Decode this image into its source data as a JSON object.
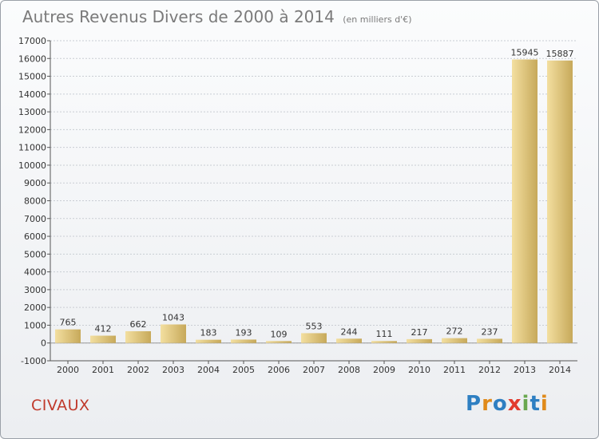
{
  "title": "Autres Revenus Divers de 2000 à 2014",
  "unit_note": "(en milliers d'€)",
  "town": "CIVAUX",
  "logo": {
    "text": "Proxiti",
    "letters": [
      "P",
      "r",
      "o",
      "x",
      "i",
      "t",
      "i"
    ]
  },
  "colors": {
    "bar_light": "#f3dfa0",
    "bar_dark": "#c7a95a",
    "grid": "#c9cdd3",
    "axis": "#555555",
    "text": "#333333"
  },
  "chart_data": {
    "type": "bar",
    "title": "Autres Revenus Divers de 2000 à 2014",
    "xlabel": "",
    "ylabel": "",
    "ylim": [
      -1000,
      17000
    ],
    "ytick_step": 1000,
    "grid": true,
    "categories": [
      "2000",
      "2001",
      "2002",
      "2003",
      "2004",
      "2005",
      "2006",
      "2007",
      "2008",
      "2009",
      "2010",
      "2011",
      "2012",
      "2013",
      "2014"
    ],
    "values": [
      765,
      412,
      662,
      1043,
      183,
      193,
      109,
      553,
      244,
      111,
      217,
      272,
      237,
      15945,
      15887
    ]
  }
}
